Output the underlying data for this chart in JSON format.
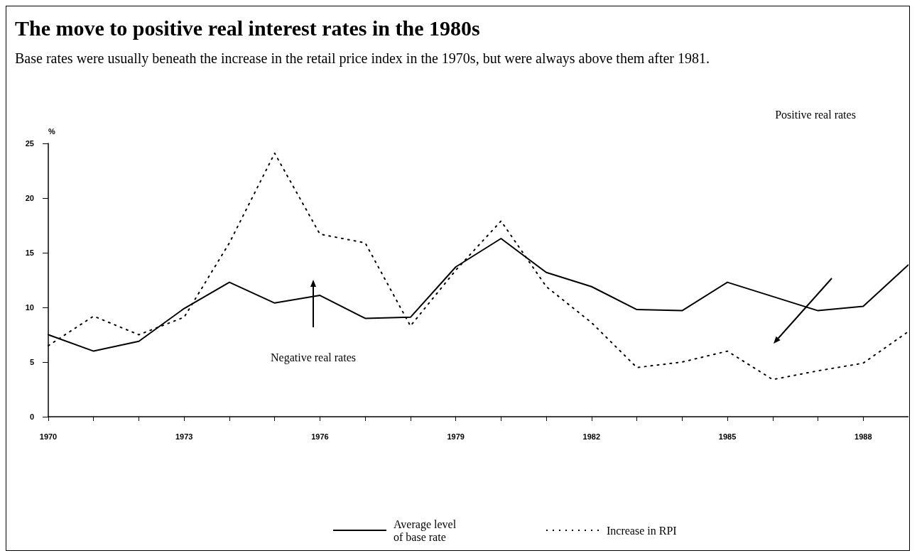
{
  "chart_data": {
    "type": "line",
    "title": "The move to positive real interest rates in the 1980s",
    "subtitle": "Base rates were usually beneath the increase in the retail price index in the 1970s, but were always above them after 1981.",
    "ylabel": "%",
    "x": [
      1970,
      1971,
      1972,
      1973,
      1974,
      1975,
      1976,
      1977,
      1978,
      1979,
      1980,
      1981,
      1982,
      1983,
      1984,
      1985,
      1986,
      1987,
      1988,
      1989
    ],
    "series": [
      {
        "name": "Average level\nof base rate",
        "color": "#000000",
        "line_style": "solid",
        "values": [
          7.5,
          6.0,
          6.9,
          9.9,
          12.3,
          10.4,
          11.1,
          9.0,
          9.1,
          13.7,
          16.3,
          13.2,
          11.9,
          9.8,
          9.7,
          12.3,
          11.0,
          9.7,
          10.1,
          13.9
        ]
      },
      {
        "name": "Increase in RPI",
        "color": "#000000",
        "line_style": "dotted",
        "values": [
          6.5,
          9.2,
          7.5,
          9.1,
          15.9,
          24.1,
          16.7,
          15.9,
          8.3,
          13.4,
          17.9,
          11.9,
          8.6,
          4.5,
          5.0,
          6.0,
          3.4,
          4.2,
          4.9,
          7.8
        ]
      }
    ],
    "xlim": [
      1970,
      1989
    ],
    "xticks": [
      1970,
      {
        "value": 1971,
        "label": null
      },
      {
        "value": 1972,
        "label": null
      },
      1973,
      {
        "value": 1974,
        "label": null
      },
      {
        "value": 1975,
        "label": null
      },
      1976,
      {
        "value": 1977,
        "label": null
      },
      {
        "value": 1978,
        "label": null
      },
      1979,
      {
        "value": 1980,
        "label": null
      },
      {
        "value": 1981,
        "label": null
      },
      1982,
      {
        "value": 1983,
        "label": null
      },
      {
        "value": 1984,
        "label": null
      },
      1985,
      {
        "value": 1986,
        "label": null
      },
      {
        "value": 1987,
        "label": null
      },
      1988,
      {
        "value": 1989,
        "label": null
      }
    ],
    "ylim": [
      0,
      25
    ],
    "yticks": [
      0,
      5,
      10,
      15,
      20,
      25
    ],
    "annotations": [
      "Negative real rates",
      "Positive real rates"
    ],
    "grid": false,
    "legend": "bottom",
    "marker": "none"
  }
}
